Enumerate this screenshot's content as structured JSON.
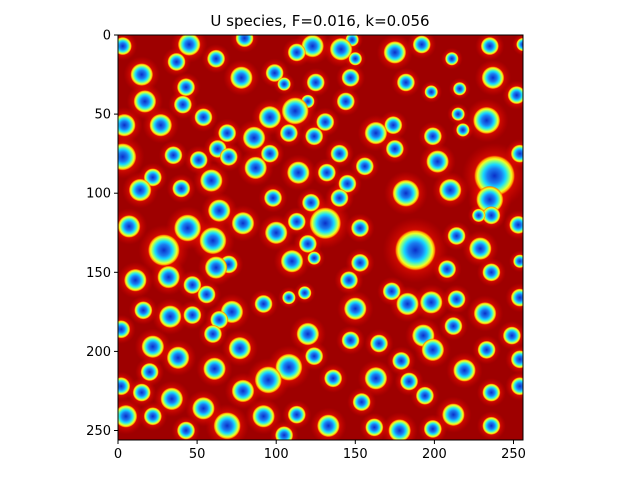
{
  "chart_data": {
    "type": "heatmap",
    "title": "U species, F=0.016, k=0.056",
    "xlabel": "",
    "ylabel": "",
    "grid_size": 256,
    "x_ticks": [
      0,
      50,
      100,
      150,
      200,
      250
    ],
    "y_ticks": [
      0,
      50,
      100,
      150,
      200,
      250
    ],
    "xlim": [
      0,
      256
    ],
    "ylim": [
      256,
      0
    ],
    "colormap": "jet",
    "grid": false,
    "spots": [
      [
        3,
        7,
        4
      ],
      [
        45,
        6,
        5
      ],
      [
        80,
        2,
        4
      ],
      [
        123,
        7,
        5
      ],
      [
        148,
        3,
        3
      ],
      [
        192,
        6,
        4
      ],
      [
        235,
        7,
        4
      ],
      [
        256,
        6,
        3
      ],
      [
        37,
        17,
        4
      ],
      [
        62,
        15,
        4
      ],
      [
        141,
        9,
        5
      ],
      [
        113,
        11,
        4
      ],
      [
        150,
        15,
        3
      ],
      [
        175,
        11,
        5
      ],
      [
        211,
        15,
        3
      ],
      [
        15,
        25,
        5
      ],
      [
        78,
        27,
        5
      ],
      [
        99,
        24,
        4
      ],
      [
        125,
        30,
        4
      ],
      [
        147,
        27,
        4
      ],
      [
        182,
        30,
        4
      ],
      [
        237,
        27,
        5
      ],
      [
        43,
        33,
        4
      ],
      [
        105,
        31,
        3
      ],
      [
        198,
        36,
        3
      ],
      [
        216,
        34,
        3
      ],
      [
        252,
        38,
        4
      ],
      [
        17,
        42,
        5
      ],
      [
        41,
        44,
        4
      ],
      [
        120,
        42,
        3
      ],
      [
        144,
        42,
        4
      ],
      [
        112,
        48,
        6
      ],
      [
        96,
        52,
        5
      ],
      [
        54,
        52,
        4
      ],
      [
        215,
        50,
        3
      ],
      [
        233,
        54,
        6
      ],
      [
        4,
        57,
        5
      ],
      [
        27,
        57,
        5
      ],
      [
        131,
        55,
        4
      ],
      [
        174,
        57,
        4
      ],
      [
        69,
        62,
        4
      ],
      [
        86,
        65,
        5
      ],
      [
        108,
        62,
        4
      ],
      [
        124,
        64,
        4
      ],
      [
        163,
        62,
        5
      ],
      [
        199,
        64,
        4
      ],
      [
        218,
        60,
        3
      ],
      [
        3,
        77,
        6
      ],
      [
        63,
        72,
        4
      ],
      [
        35,
        76,
        4
      ],
      [
        51,
        79,
        4
      ],
      [
        70,
        77,
        4
      ],
      [
        96,
        75,
        4
      ],
      [
        140,
        75,
        4
      ],
      [
        175,
        72,
        4
      ],
      [
        202,
        80,
        5
      ],
      [
        238,
        89,
        9
      ],
      [
        254,
        75,
        4
      ],
      [
        87,
        84,
        5
      ],
      [
        114,
        87,
        5
      ],
      [
        132,
        87,
        4
      ],
      [
        156,
        83,
        4
      ],
      [
        22,
        90,
        4
      ],
      [
        59,
        92,
        5
      ],
      [
        14,
        98,
        5
      ],
      [
        40,
        97,
        4
      ],
      [
        145,
        94,
        4
      ],
      [
        140,
        103,
        4
      ],
      [
        182,
        100,
        6
      ],
      [
        210,
        98,
        5
      ],
      [
        235,
        104,
        6
      ],
      [
        98,
        103,
        4
      ],
      [
        122,
        106,
        4
      ],
      [
        64,
        111,
        5
      ],
      [
        236,
        114,
        4
      ],
      [
        228,
        114,
        3
      ],
      [
        7,
        121,
        5
      ],
      [
        44,
        122,
        6
      ],
      [
        79,
        119,
        5
      ],
      [
        113,
        118,
        4
      ],
      [
        100,
        125,
        5
      ],
      [
        131,
        119,
        7
      ],
      [
        153,
        122,
        4
      ],
      [
        214,
        127,
        4
      ],
      [
        253,
        120,
        4
      ],
      [
        60,
        130,
        6
      ],
      [
        29,
        136,
        7
      ],
      [
        120,
        132,
        4
      ],
      [
        229,
        135,
        5
      ],
      [
        188,
        136,
        9
      ],
      [
        70,
        145,
        4
      ],
      [
        110,
        143,
        5
      ],
      [
        124,
        141,
        3
      ],
      [
        153,
        144,
        4
      ],
      [
        254,
        143,
        3
      ],
      [
        11,
        155,
        5
      ],
      [
        32,
        153,
        5
      ],
      [
        62,
        147,
        5
      ],
      [
        146,
        155,
        4
      ],
      [
        208,
        148,
        4
      ],
      [
        236,
        150,
        4
      ],
      [
        47,
        158,
        4
      ],
      [
        56,
        164,
        4
      ],
      [
        108,
        166,
        3
      ],
      [
        118,
        163,
        3
      ],
      [
        173,
        162,
        4
      ],
      [
        254,
        166,
        4
      ],
      [
        183,
        170,
        5
      ],
      [
        198,
        169,
        5
      ],
      [
        214,
        167,
        4
      ],
      [
        72,
        175,
        5
      ],
      [
        92,
        170,
        4
      ],
      [
        150,
        173,
        5
      ],
      [
        16,
        174,
        4
      ],
      [
        33,
        178,
        5
      ],
      [
        47,
        177,
        4
      ],
      [
        64,
        180,
        4
      ],
      [
        212,
        184,
        4
      ],
      [
        232,
        176,
        5
      ],
      [
        2,
        186,
        4
      ],
      [
        60,
        189,
        4
      ],
      [
        120,
        189,
        5
      ],
      [
        193,
        190,
        5
      ],
      [
        249,
        190,
        4
      ],
      [
        22,
        197,
        5
      ],
      [
        77,
        198,
        5
      ],
      [
        147,
        193,
        4
      ],
      [
        165,
        195,
        4
      ],
      [
        199,
        199,
        5
      ],
      [
        233,
        199,
        4
      ],
      [
        38,
        204,
        5
      ],
      [
        179,
        206,
        4
      ],
      [
        61,
        211,
        5
      ],
      [
        108,
        210,
        6
      ],
      [
        124,
        203,
        4
      ],
      [
        219,
        212,
        5
      ],
      [
        254,
        205,
        4
      ],
      [
        20,
        213,
        4
      ],
      [
        136,
        217,
        4
      ],
      [
        163,
        217,
        5
      ],
      [
        184,
        219,
        4
      ],
      [
        95,
        218,
        6
      ],
      [
        2,
        222,
        4
      ],
      [
        15,
        226,
        4
      ],
      [
        79,
        225,
        5
      ],
      [
        194,
        228,
        4
      ],
      [
        34,
        230,
        5
      ],
      [
        54,
        236,
        5
      ],
      [
        154,
        232,
        4
      ],
      [
        236,
        226,
        4
      ],
      [
        254,
        222,
        4
      ],
      [
        5,
        241,
        5
      ],
      [
        22,
        241,
        4
      ],
      [
        92,
        241,
        5
      ],
      [
        113,
        240,
        4
      ],
      [
        212,
        240,
        5
      ],
      [
        133,
        247,
        5
      ],
      [
        162,
        248,
        4
      ],
      [
        69,
        247,
        6
      ],
      [
        43,
        250,
        4
      ],
      [
        178,
        250,
        5
      ],
      [
        199,
        249,
        4
      ],
      [
        236,
        247,
        4
      ],
      [
        105,
        253,
        4
      ]
    ]
  }
}
